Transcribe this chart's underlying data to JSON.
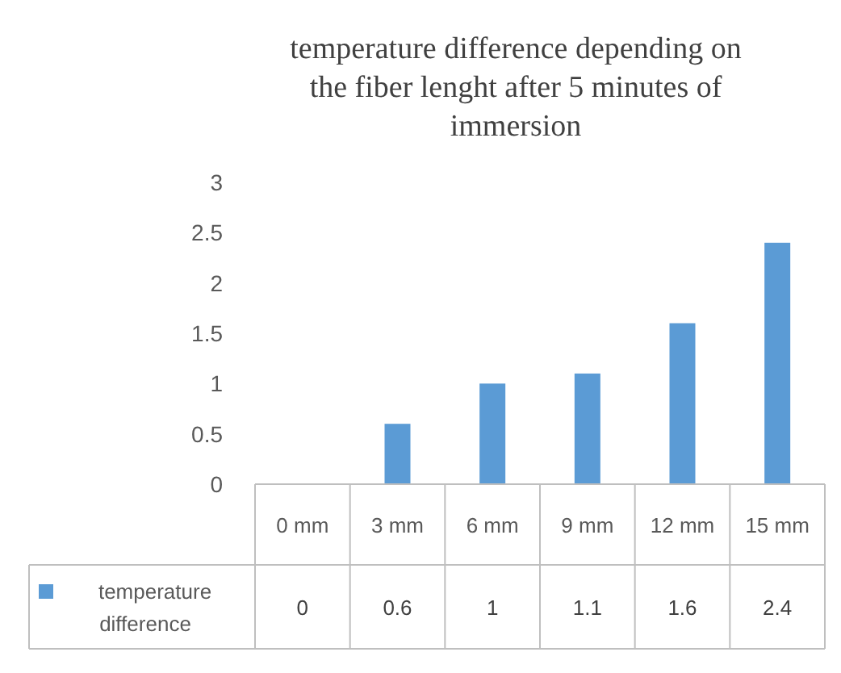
{
  "chart_data": {
    "type": "bar",
    "title": "temperature difference depending on the fiber lenght after 5 minutes of immersion",
    "categories": [
      "0 mm",
      "3 mm",
      "6 mm",
      "9 mm",
      "12 mm",
      "15 mm"
    ],
    "series": [
      {
        "name": "temperature difference",
        "color": "#5b9bd5",
        "values": [
          0,
          0.6,
          1,
          1.1,
          1.6,
          2.4
        ]
      }
    ],
    "ylim": [
      0,
      3
    ],
    "yticks": [
      0,
      0.5,
      1,
      1.5,
      2,
      2.5,
      3
    ],
    "data_labels": true,
    "legend": "bottom"
  }
}
